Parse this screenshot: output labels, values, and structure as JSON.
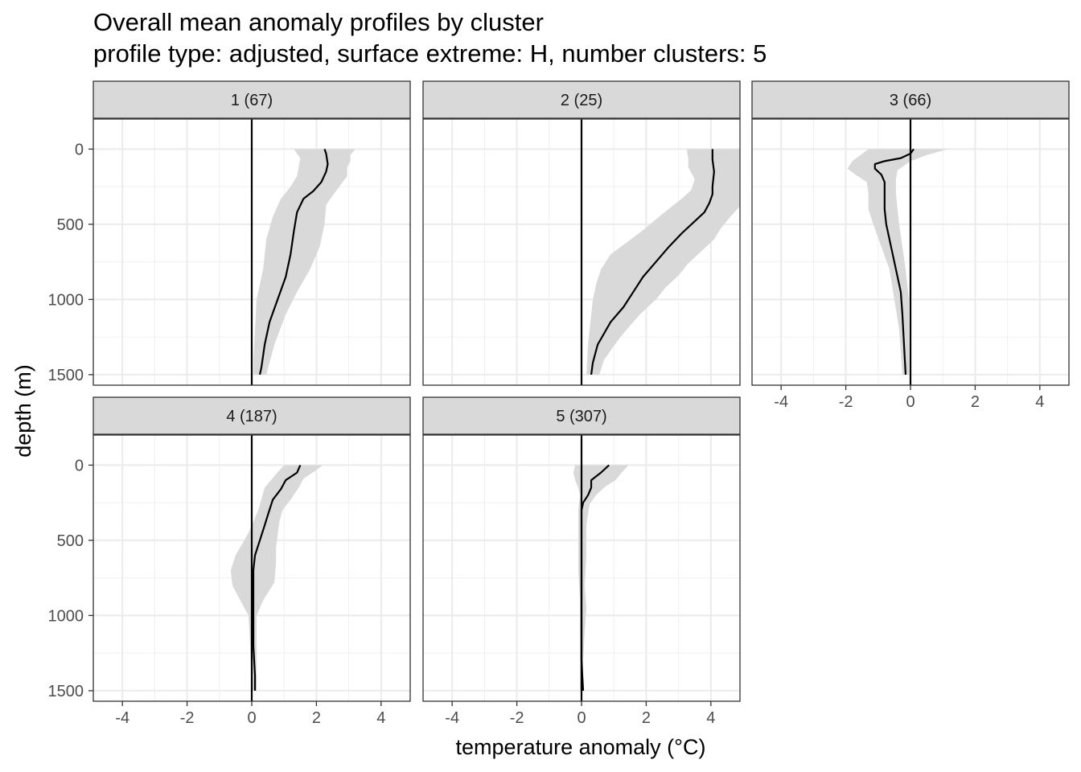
{
  "chart_data": {
    "type": "line",
    "title": "Overall mean anomaly profiles by cluster",
    "subtitle": "profile type: adjusted, surface extreme: H, number clusters: 5",
    "xlabel": "temperature anomaly (°C)",
    "ylabel": "depth (m)",
    "xlim": [
      -4.9,
      4.9
    ],
    "ylim": [
      1570,
      -200
    ],
    "y_reversed": true,
    "x_ticks": [
      -4,
      -2,
      0,
      2,
      4
    ],
    "y_ticks": [
      0,
      500,
      1000,
      1500
    ],
    "grid": true,
    "reference_line_x": 0,
    "band_color": "#d9d9d9",
    "line_color": "#000000",
    "panels": [
      {
        "label": "1 (67)",
        "mean": [
          [
            2.25,
            0
          ],
          [
            2.3,
            30
          ],
          [
            2.35,
            100
          ],
          [
            2.3,
            150
          ],
          [
            2.15,
            220
          ],
          [
            1.9,
            280
          ],
          [
            1.6,
            330
          ],
          [
            1.4,
            420
          ],
          [
            1.3,
            550
          ],
          [
            1.2,
            700
          ],
          [
            1.05,
            850
          ],
          [
            0.8,
            1000
          ],
          [
            0.55,
            1150
          ],
          [
            0.4,
            1300
          ],
          [
            0.3,
            1450
          ],
          [
            0.25,
            1500
          ]
        ],
        "band_left": [
          [
            1.3,
            0
          ],
          [
            1.5,
            60
          ],
          [
            1.45,
            120
          ],
          [
            1.4,
            180
          ],
          [
            1.2,
            250
          ],
          [
            0.9,
            330
          ],
          [
            0.65,
            450
          ],
          [
            0.45,
            600
          ],
          [
            0.35,
            800
          ],
          [
            0.15,
            1000
          ],
          [
            0.1,
            1200
          ],
          [
            0.05,
            1400
          ],
          [
            0.05,
            1500
          ]
        ],
        "band_right": [
          [
            3.2,
            0
          ],
          [
            3.05,
            40
          ],
          [
            3.05,
            80
          ],
          [
            2.95,
            120
          ],
          [
            2.95,
            180
          ],
          [
            2.6,
            280
          ],
          [
            2.3,
            370
          ],
          [
            2.25,
            500
          ],
          [
            2.1,
            650
          ],
          [
            1.8,
            800
          ],
          [
            1.4,
            950
          ],
          [
            1.05,
            1100
          ],
          [
            0.7,
            1300
          ],
          [
            0.45,
            1500
          ]
        ]
      },
      {
        "label": "2 (25)",
        "mean": [
          [
            4.05,
            0
          ],
          [
            4.05,
            70
          ],
          [
            4.1,
            150
          ],
          [
            4.05,
            250
          ],
          [
            4.05,
            300
          ],
          [
            3.95,
            360
          ],
          [
            3.8,
            420
          ],
          [
            3.5,
            480
          ],
          [
            3.1,
            560
          ],
          [
            2.7,
            650
          ],
          [
            2.3,
            750
          ],
          [
            1.9,
            850
          ],
          [
            1.6,
            950
          ],
          [
            1.3,
            1050
          ],
          [
            0.9,
            1150
          ],
          [
            0.5,
            1300
          ],
          [
            0.35,
            1420
          ],
          [
            0.3,
            1500
          ]
        ],
        "band_left": [
          [
            3.25,
            0
          ],
          [
            3.3,
            60
          ],
          [
            3.3,
            120
          ],
          [
            3.5,
            200
          ],
          [
            3.4,
            270
          ],
          [
            3.1,
            330
          ],
          [
            2.8,
            380
          ],
          [
            2.4,
            450
          ],
          [
            1.9,
            540
          ],
          [
            1.4,
            620
          ],
          [
            0.9,
            700
          ],
          [
            0.6,
            800
          ],
          [
            0.45,
            900
          ],
          [
            0.35,
            1000
          ],
          [
            0.3,
            1100
          ],
          [
            0.2,
            1300
          ],
          [
            0.15,
            1500
          ]
        ],
        "band_right": [
          [
            4.9,
            0
          ],
          [
            4.9,
            200
          ],
          [
            4.9,
            380
          ],
          [
            4.6,
            450
          ],
          [
            4.3,
            530
          ],
          [
            4.1,
            600
          ],
          [
            3.7,
            680
          ],
          [
            3.3,
            760
          ],
          [
            3.0,
            840
          ],
          [
            2.6,
            920
          ],
          [
            2.3,
            1000
          ],
          [
            1.8,
            1100
          ],
          [
            1.2,
            1250
          ],
          [
            0.7,
            1400
          ],
          [
            0.55,
            1500
          ]
        ]
      },
      {
        "label": "3 (66)",
        "mean": [
          [
            0.1,
            0
          ],
          [
            0.0,
            30
          ],
          [
            -0.3,
            60
          ],
          [
            -0.8,
            80
          ],
          [
            -1.1,
            100
          ],
          [
            -1.1,
            130
          ],
          [
            -0.9,
            170
          ],
          [
            -0.8,
            220
          ],
          [
            -0.8,
            300
          ],
          [
            -0.8,
            400
          ],
          [
            -0.75,
            500
          ],
          [
            -0.6,
            650
          ],
          [
            -0.45,
            800
          ],
          [
            -0.3,
            950
          ],
          [
            -0.25,
            1100
          ],
          [
            -0.2,
            1300
          ],
          [
            -0.15,
            1500
          ]
        ],
        "band_left": [
          [
            -1.3,
            0
          ],
          [
            -1.8,
            80
          ],
          [
            -1.95,
            130
          ],
          [
            -1.7,
            170
          ],
          [
            -1.35,
            220
          ],
          [
            -1.3,
            300
          ],
          [
            -1.3,
            400
          ],
          [
            -1.15,
            500
          ],
          [
            -0.9,
            650
          ],
          [
            -0.65,
            800
          ],
          [
            -0.5,
            1000
          ],
          [
            -0.35,
            1200
          ],
          [
            -0.25,
            1500
          ]
        ],
        "band_right": [
          [
            1.15,
            0
          ],
          [
            0.5,
            40
          ],
          [
            0.0,
            80
          ],
          [
            -0.4,
            140
          ],
          [
            -0.45,
            200
          ],
          [
            -0.45,
            300
          ],
          [
            -0.4,
            400
          ],
          [
            -0.35,
            500
          ],
          [
            -0.25,
            650
          ],
          [
            -0.15,
            800
          ],
          [
            -0.05,
            1000
          ],
          [
            -0.05,
            1200
          ],
          [
            -0.05,
            1500
          ]
        ]
      },
      {
        "label": "4 (187)",
        "mean": [
          [
            1.5,
            0
          ],
          [
            1.4,
            50
          ],
          [
            1.05,
            100
          ],
          [
            0.9,
            160
          ],
          [
            0.65,
            230
          ],
          [
            0.5,
            330
          ],
          [
            0.4,
            400
          ],
          [
            0.25,
            500
          ],
          [
            0.1,
            600
          ],
          [
            0.05,
            700
          ],
          [
            0.05,
            850
          ],
          [
            0.05,
            1000
          ],
          [
            0.05,
            1200
          ],
          [
            0.1,
            1400
          ],
          [
            0.1,
            1500
          ]
        ],
        "band_left": [
          [
            1.0,
            0
          ],
          [
            0.75,
            60
          ],
          [
            0.4,
            150
          ],
          [
            0.2,
            300
          ],
          [
            -0.1,
            450
          ],
          [
            -0.5,
            600
          ],
          [
            -0.65,
            700
          ],
          [
            -0.6,
            800
          ],
          [
            -0.35,
            900
          ],
          [
            -0.1,
            1000
          ],
          [
            -0.05,
            1200
          ],
          [
            0.0,
            1500
          ]
        ],
        "band_right": [
          [
            2.2,
            0
          ],
          [
            1.95,
            40
          ],
          [
            1.6,
            90
          ],
          [
            1.45,
            150
          ],
          [
            1.2,
            230
          ],
          [
            0.95,
            300
          ],
          [
            0.85,
            380
          ],
          [
            0.8,
            470
          ],
          [
            0.75,
            550
          ],
          [
            0.75,
            650
          ],
          [
            0.7,
            780
          ],
          [
            0.35,
            900
          ],
          [
            0.15,
            1000
          ],
          [
            0.15,
            1200
          ],
          [
            0.15,
            1500
          ]
        ]
      },
      {
        "label": "5 (307)",
        "mean": [
          [
            0.85,
            0
          ],
          [
            0.6,
            50
          ],
          [
            0.3,
            100
          ],
          [
            0.3,
            150
          ],
          [
            0.2,
            200
          ],
          [
            0.05,
            250
          ],
          [
            0.0,
            300
          ],
          [
            0.0,
            500
          ],
          [
            0.0,
            700
          ],
          [
            0.0,
            900
          ],
          [
            0.0,
            1100
          ],
          [
            0.0,
            1300
          ],
          [
            0.05,
            1500
          ]
        ],
        "band_left": [
          [
            -0.2,
            0
          ],
          [
            -0.25,
            50
          ],
          [
            -0.2,
            100
          ],
          [
            -0.1,
            150
          ],
          [
            -0.05,
            200
          ],
          [
            -0.1,
            300
          ],
          [
            -0.1,
            500
          ],
          [
            -0.1,
            700
          ],
          [
            -0.05,
            900
          ],
          [
            -0.05,
            1100
          ],
          [
            -0.05,
            1300
          ],
          [
            -0.05,
            1500
          ]
        ],
        "band_right": [
          [
            1.45,
            0
          ],
          [
            1.2,
            60
          ],
          [
            1.05,
            100
          ],
          [
            0.75,
            140
          ],
          [
            0.45,
            200
          ],
          [
            0.25,
            260
          ],
          [
            0.15,
            400
          ],
          [
            0.15,
            600
          ],
          [
            0.1,
            800
          ],
          [
            0.15,
            950
          ],
          [
            0.1,
            1100
          ],
          [
            0.05,
            1300
          ],
          [
            0.05,
            1500
          ]
        ]
      }
    ]
  }
}
